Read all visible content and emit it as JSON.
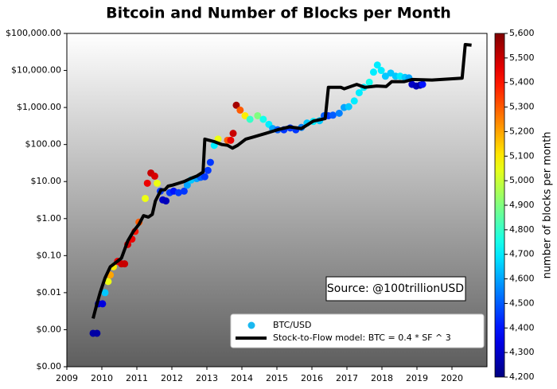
{
  "chart_data": {
    "type": "scatter",
    "title": "Bitcoin and Number of Blocks per Month",
    "annotation": "Source: @100trillionUSD",
    "yscale": "log",
    "xlim": [
      2009,
      2021
    ],
    "xticks": [
      2009,
      2010,
      2011,
      2012,
      2013,
      2014,
      2015,
      2016,
      2017,
      2018,
      2019,
      2020
    ],
    "ylim": [
      0.0001,
      100000
    ],
    "yticks": [
      {
        "value": 0.0001,
        "label": "$0.00"
      },
      {
        "value": 0.001,
        "label": "$0.00"
      },
      {
        "value": 0.01,
        "label": "$0.01"
      },
      {
        "value": 0.1,
        "label": "$0.10"
      },
      {
        "value": 1,
        "label": "$1.00"
      },
      {
        "value": 10,
        "label": "$10.00"
      },
      {
        "value": 100,
        "label": "$100.00"
      },
      {
        "value": 1000,
        "label": "$1,000.00"
      },
      {
        "value": 10000,
        "label": "$10,000.00"
      },
      {
        "value": 100000,
        "label": "$100,000.00"
      }
    ],
    "colormap": "jet",
    "colorbar_label": "number of blocks per month",
    "clim": [
      4200,
      5600
    ],
    "cticks": [
      {
        "value": 4200,
        "label": "4,200"
      },
      {
        "value": 4300,
        "label": "4,300"
      },
      {
        "value": 4400,
        "label": "4,400"
      },
      {
        "value": 4500,
        "label": "4,500"
      },
      {
        "value": 4600,
        "label": "4,600"
      },
      {
        "value": 4700,
        "label": "4,700"
      },
      {
        "value": 4800,
        "label": "4,800"
      },
      {
        "value": 4900,
        "label": "4,900"
      },
      {
        "value": 5000,
        "label": "5,000"
      },
      {
        "value": 5100,
        "label": "5,100"
      },
      {
        "value": 5200,
        "label": "5,200"
      },
      {
        "value": 5300,
        "label": "5,300"
      },
      {
        "value": 5400,
        "label": "5,400"
      },
      {
        "value": 5500,
        "label": "5,500"
      },
      {
        "value": 5600,
        "label": "5,600"
      }
    ],
    "legend": "lower right",
    "series": [
      {
        "name": "BTC/USD",
        "type": "scatter",
        "color": "#1ab8f0",
        "x": [
          2009.75,
          2009.86,
          2009.9,
          2010.02,
          2010.09,
          2010.18,
          2010.24,
          2010.33,
          2010.45,
          2010.56,
          2010.65,
          2010.74,
          2010.86,
          2010.95,
          2011.06,
          2011.24,
          2011.3,
          2011.4,
          2011.51,
          2011.58,
          2011.67,
          2011.74,
          2011.83,
          2011.94,
          2012.05,
          2012.19,
          2012.35,
          2012.44,
          2012.55,
          2012.71,
          2012.82,
          2012.94,
          2013.03,
          2013.1,
          2013.21,
          2013.32,
          2013.59,
          2013.68,
          2013.75,
          2013.84,
          2013.95,
          2014.09,
          2014.23,
          2014.45,
          2014.61,
          2014.77,
          2014.88,
          2015.02,
          2015.2,
          2015.38,
          2015.54,
          2015.7,
          2015.86,
          2016.04,
          2016.22,
          2016.35,
          2016.47,
          2016.6,
          2016.78,
          2016.92,
          2017.05,
          2017.21,
          2017.35,
          2017.48,
          2017.64,
          2017.76,
          2017.87,
          2017.98,
          2018.1,
          2018.25,
          2018.39,
          2018.52,
          2018.66,
          2018.77,
          2018.86,
          2018.98,
          2019.09,
          2019.16
        ],
        "values": [
          0.0008,
          0.0008,
          0.005,
          0.005,
          0.01,
          0.02,
          0.03,
          0.05,
          0.07,
          0.06,
          0.06,
          0.2,
          0.28,
          0.45,
          0.8,
          3.5,
          9,
          17,
          14,
          9,
          5.5,
          3.2,
          3,
          5,
          5.5,
          5,
          5.5,
          8,
          11,
          12,
          13,
          13.5,
          20,
          33,
          95,
          140,
          130,
          130,
          200,
          1150,
          850,
          600,
          480,
          600,
          480,
          350,
          270,
          250,
          250,
          280,
          250,
          290,
          380,
          420,
          440,
          600,
          600,
          620,
          700,
          1000,
          1050,
          1500,
          2500,
          3500,
          4800,
          9000,
          14000,
          10000,
          7000,
          8500,
          7000,
          7000,
          6500,
          6300,
          4200,
          3800,
          4000,
          4200
        ],
        "c": [
          4250,
          4250,
          4300,
          4330,
          4650,
          5050,
          5200,
          5100,
          5450,
          5500,
          5500,
          5480,
          5450,
          5400,
          5300,
          5050,
          5450,
          5500,
          5480,
          5050,
          4450,
          4300,
          4280,
          4450,
          4400,
          4450,
          4450,
          4600,
          4650,
          4600,
          4500,
          4450,
          4450,
          4450,
          4700,
          5050,
          5300,
          5450,
          5500,
          5550,
          5300,
          5100,
          4800,
          4900,
          4750,
          4700,
          4600,
          4500,
          4450,
          4450,
          4450,
          4550,
          4650,
          4700,
          4650,
          4500,
          4450,
          4500,
          4550,
          4600,
          4650,
          4700,
          4700,
          4700,
          4750,
          4700,
          4700,
          4700,
          4650,
          4650,
          4650,
          4700,
          4650,
          4600,
          4300,
          4280,
          4250,
          4400
        ]
      },
      {
        "name": "Stock-to-Flow model: BTC = 0.4 * SF ^ 3",
        "type": "line",
        "color": "#000000",
        "x": [
          2009.75,
          2009.86,
          2009.95,
          2010.09,
          2010.24,
          2010.4,
          2010.56,
          2010.74,
          2010.9,
          2011.06,
          2011.19,
          2011.33,
          2011.44,
          2011.53,
          2011.69,
          2011.8,
          2011.89,
          2012.02,
          2012.19,
          2012.35,
          2012.53,
          2012.71,
          2012.89,
          2012.94,
          2013.07,
          2013.21,
          2013.43,
          2013.59,
          2013.73,
          2013.88,
          2014.11,
          2014.33,
          2014.68,
          2015.02,
          2015.36,
          2015.7,
          2016.04,
          2016.38,
          2016.47,
          2016.83,
          2016.92,
          2017.28,
          2017.51,
          2017.85,
          2018.12,
          2018.28,
          2018.64,
          2018.86,
          2019.43,
          2020.29,
          2020.38,
          2020.56
        ],
        "values": [
          0.002,
          0.005,
          0.01,
          0.025,
          0.05,
          0.065,
          0.085,
          0.25,
          0.45,
          0.7,
          1.2,
          1.1,
          1.3,
          3,
          6,
          6,
          7.5,
          8,
          9,
          10,
          12,
          14,
          18,
          140,
          130,
          120,
          100,
          95,
          80,
          95,
          140,
          160,
          200,
          250,
          300,
          270,
          430,
          500,
          3500,
          3500,
          3200,
          4200,
          3500,
          3800,
          3700,
          5000,
          5000,
          5700,
          5500,
          6200,
          50000,
          48000
        ]
      }
    ]
  }
}
